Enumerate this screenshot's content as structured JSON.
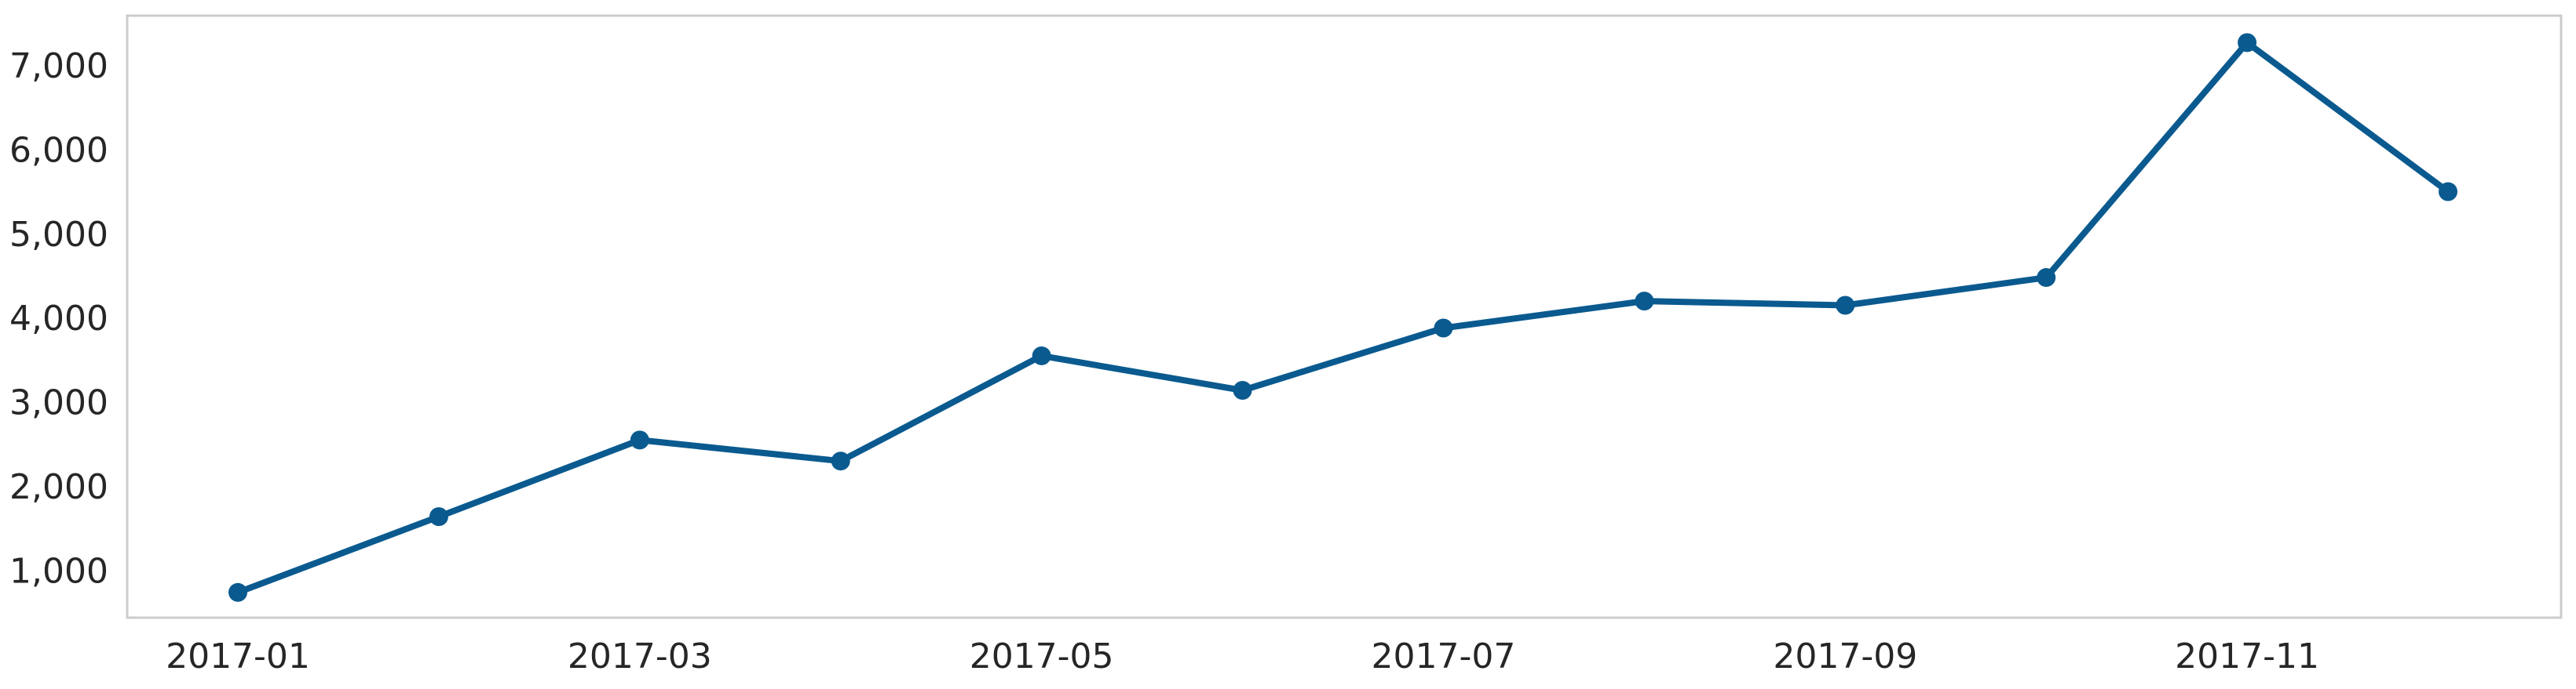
{
  "chart_data": {
    "type": "line",
    "title": "",
    "xlabel": "",
    "ylabel": "",
    "x": [
      "2017-01",
      "2017-02",
      "2017-03",
      "2017-04",
      "2017-05",
      "2017-06",
      "2017-07",
      "2017-08",
      "2017-09",
      "2017-10",
      "2017-11",
      "2017-12"
    ],
    "series": [
      {
        "values": [
          750,
          1650,
          2560,
          2310,
          3560,
          3150,
          3890,
          4210,
          4160,
          4490,
          7280,
          5510
        ],
        "color": "#0a5a8f",
        "marker": "circle"
      }
    ],
    "x_tick_labels": [
      "2017-01",
      "2017-03",
      "2017-05",
      "2017-07",
      "2017-09",
      "2017-11"
    ],
    "y_ticks": [
      1000,
      2000,
      3000,
      4000,
      5000,
      6000,
      7000
    ],
    "y_tick_labels": [
      "1,000",
      "2,000",
      "3,000",
      "4,000",
      "5,000",
      "6,000",
      "7,000"
    ],
    "ylim": [
      450,
      7600
    ],
    "grid": false,
    "legend": false,
    "frame_color": "#cccccc"
  }
}
